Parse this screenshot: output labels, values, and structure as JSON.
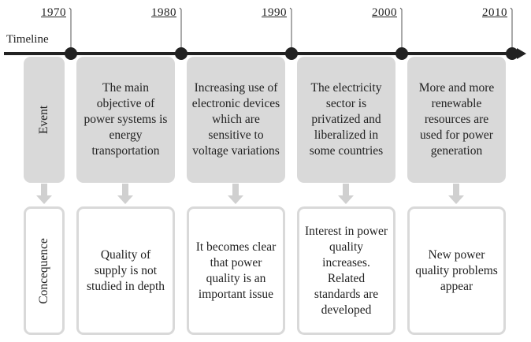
{
  "timeline_label": "Timeline",
  "years": [
    "1970",
    "1980",
    "1990",
    "2000",
    "2010"
  ],
  "row_labels": {
    "event": "Event",
    "consequence": "Concequence"
  },
  "events": [
    "The main objective of power systems is energy transportation",
    "Increasing use of electronic devices which are sensitive to voltage variations",
    "The electricity sector is privatized and liberalized in some countries",
    "More and more renewable resources are used for power generation"
  ],
  "consequences": [
    "Quality of supply is not studied in depth",
    "It becomes clear that power quality is an important issue",
    "Interest in power quality increases. Related standards are developed",
    "New power quality problems appear"
  ]
}
